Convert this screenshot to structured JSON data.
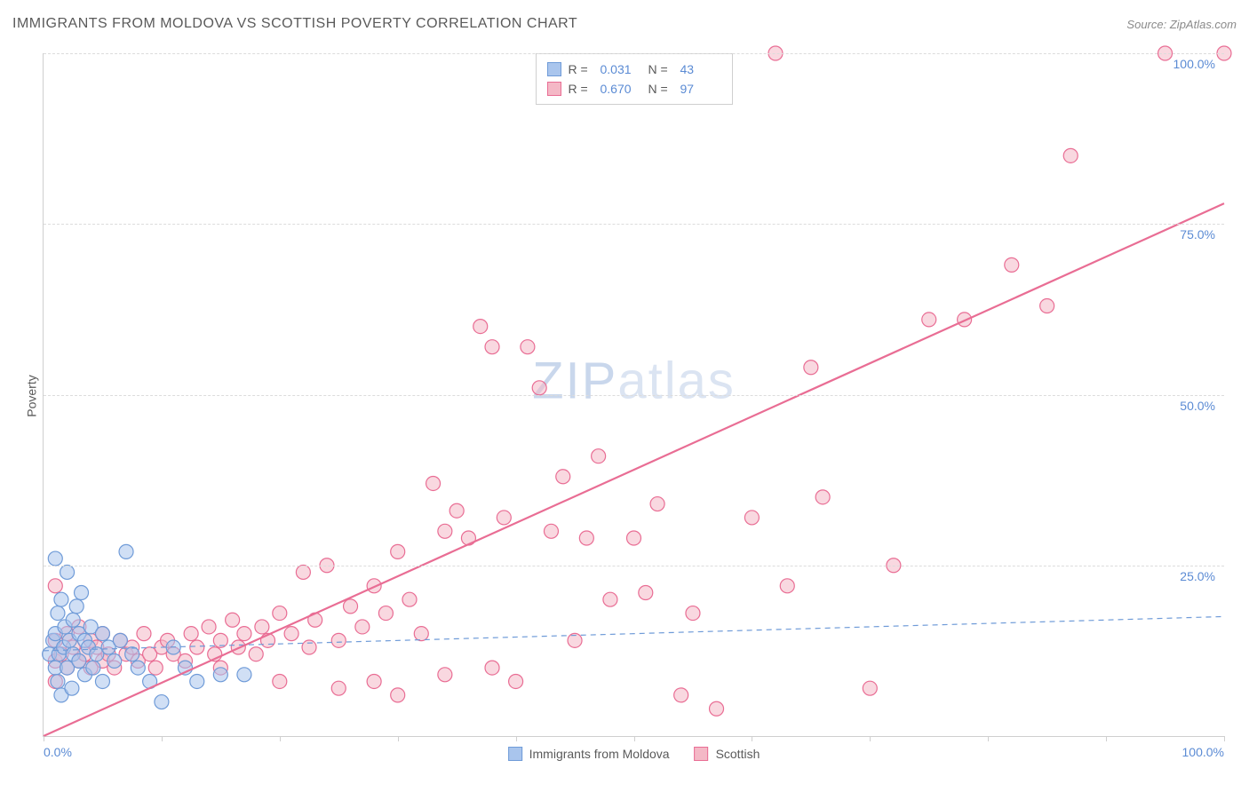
{
  "title": "IMMIGRANTS FROM MOLDOVA VS SCOTTISH POVERTY CORRELATION CHART",
  "source_label": "Source:",
  "source_name": "ZipAtlas.com",
  "ylabel": "Poverty",
  "watermark_zip": "ZIP",
  "watermark_atlas": "atlas",
  "chart": {
    "type": "scatter",
    "xlim": [
      0,
      100
    ],
    "ylim": [
      0,
      100
    ],
    "x_ticks": [
      0,
      10,
      20,
      30,
      40,
      50,
      60,
      70,
      80,
      90,
      100
    ],
    "x_tick_labels": {
      "0": "0.0%",
      "100": "100.0%"
    },
    "y_ticks": [
      25,
      50,
      75,
      100
    ],
    "y_tick_labels": [
      "25.0%",
      "50.0%",
      "75.0%",
      "100.0%"
    ],
    "grid_color": "#dcdcdc",
    "axis_color": "#cfcfcf",
    "tick_label_color": "#5b8bd4",
    "background_color": "#ffffff",
    "marker_radius": 8,
    "marker_stroke_width": 1.2,
    "series": [
      {
        "name": "Immigrants from Moldova",
        "fill": "#a9c5ed",
        "stroke": "#6f9bd8",
        "fill_opacity": 0.55,
        "R": "0.031",
        "N": "43",
        "trend": {
          "x1": 0,
          "y1": 12.5,
          "x2": 100,
          "y2": 17.5,
          "dash": "6,5",
          "width": 1.2,
          "color": "#6f9bd8"
        },
        "points": [
          [
            0.5,
            12
          ],
          [
            0.8,
            14
          ],
          [
            1.0,
            10
          ],
          [
            1.0,
            15
          ],
          [
            1.2,
            8
          ],
          [
            1.2,
            18
          ],
          [
            1.3,
            12
          ],
          [
            1.5,
            20
          ],
          [
            1.5,
            6
          ],
          [
            1.7,
            13
          ],
          [
            1.8,
            16
          ],
          [
            2.0,
            24
          ],
          [
            2.0,
            10
          ],
          [
            2.2,
            14
          ],
          [
            2.4,
            7
          ],
          [
            2.5,
            17
          ],
          [
            2.5,
            12
          ],
          [
            2.8,
            19
          ],
          [
            3.0,
            11
          ],
          [
            3.0,
            15
          ],
          [
            3.2,
            21
          ],
          [
            3.5,
            9
          ],
          [
            3.5,
            14
          ],
          [
            3.8,
            13
          ],
          [
            4.0,
            16
          ],
          [
            4.2,
            10
          ],
          [
            4.5,
            12
          ],
          [
            5.0,
            15
          ],
          [
            5.0,
            8
          ],
          [
            5.5,
            13
          ],
          [
            6.0,
            11
          ],
          [
            6.5,
            14
          ],
          [
            7.0,
            27
          ],
          [
            7.5,
            12
          ],
          [
            8.0,
            10
          ],
          [
            9.0,
            8
          ],
          [
            10.0,
            5
          ],
          [
            11.0,
            13
          ],
          [
            12.0,
            10
          ],
          [
            13.0,
            8
          ],
          [
            15.0,
            9
          ],
          [
            17.0,
            9
          ],
          [
            1.0,
            26
          ]
        ]
      },
      {
        "name": "Scottish",
        "fill": "#f4b8c6",
        "stroke": "#e96d94",
        "fill_opacity": 0.55,
        "R": "0.670",
        "N": "97",
        "trend": {
          "x1": 0,
          "y1": 0,
          "x2": 100,
          "y2": 78,
          "dash": "none",
          "width": 2.2,
          "color": "#e96d94"
        },
        "points": [
          [
            1,
            11
          ],
          [
            1,
            14
          ],
          [
            1,
            8
          ],
          [
            1.5,
            12
          ],
          [
            2,
            10
          ],
          [
            2,
            15
          ],
          [
            2.5,
            13
          ],
          [
            3,
            11
          ],
          [
            3,
            16
          ],
          [
            3.5,
            12
          ],
          [
            4,
            10
          ],
          [
            4,
            14
          ],
          [
            4.5,
            13
          ],
          [
            5,
            11
          ],
          [
            5,
            15
          ],
          [
            5.5,
            12
          ],
          [
            6,
            10
          ],
          [
            6.5,
            14
          ],
          [
            7,
            12
          ],
          [
            7.5,
            13
          ],
          [
            8,
            11
          ],
          [
            8.5,
            15
          ],
          [
            9,
            12
          ],
          [
            9.5,
            10
          ],
          [
            10,
            13
          ],
          [
            10.5,
            14
          ],
          [
            11,
            12
          ],
          [
            12,
            11
          ],
          [
            12.5,
            15
          ],
          [
            13,
            13
          ],
          [
            14,
            16
          ],
          [
            14.5,
            12
          ],
          [
            15,
            14
          ],
          [
            15,
            10
          ],
          [
            16,
            17
          ],
          [
            16.5,
            13
          ],
          [
            17,
            15
          ],
          [
            18,
            12
          ],
          [
            18.5,
            16
          ],
          [
            19,
            14
          ],
          [
            20,
            18
          ],
          [
            20,
            8
          ],
          [
            21,
            15
          ],
          [
            22,
            24
          ],
          [
            22.5,
            13
          ],
          [
            23,
            17
          ],
          [
            24,
            25
          ],
          [
            25,
            14
          ],
          [
            25,
            7
          ],
          [
            26,
            19
          ],
          [
            27,
            16
          ],
          [
            28,
            8
          ],
          [
            28,
            22
          ],
          [
            29,
            18
          ],
          [
            30,
            27
          ],
          [
            30,
            6
          ],
          [
            31,
            20
          ],
          [
            32,
            15
          ],
          [
            33,
            37
          ],
          [
            34,
            30
          ],
          [
            34,
            9
          ],
          [
            35,
            33
          ],
          [
            36,
            29
          ],
          [
            37,
            60
          ],
          [
            38,
            10
          ],
          [
            38,
            57
          ],
          [
            39,
            32
          ],
          [
            40,
            8
          ],
          [
            41,
            57
          ],
          [
            42,
            51
          ],
          [
            43,
            30
          ],
          [
            44,
            38
          ],
          [
            45,
            14
          ],
          [
            46,
            29
          ],
          [
            47,
            41
          ],
          [
            48,
            20
          ],
          [
            50,
            29
          ],
          [
            51,
            21
          ],
          [
            52,
            34
          ],
          [
            54,
            6
          ],
          [
            55,
            18
          ],
          [
            57,
            4
          ],
          [
            60,
            32
          ],
          [
            62,
            100
          ],
          [
            63,
            22
          ],
          [
            65,
            54
          ],
          [
            66,
            35
          ],
          [
            70,
            7
          ],
          [
            72,
            25
          ],
          [
            75,
            61
          ],
          [
            78,
            61
          ],
          [
            82,
            69
          ],
          [
            85,
            63
          ],
          [
            87,
            85
          ],
          [
            95,
            100
          ],
          [
            100,
            100
          ],
          [
            1,
            22
          ]
        ]
      }
    ]
  },
  "stats_legend": {
    "r_label": "R =",
    "n_label": "N ="
  },
  "bottom_legend": {
    "items": [
      "Immigrants from Moldova",
      "Scottish"
    ]
  }
}
